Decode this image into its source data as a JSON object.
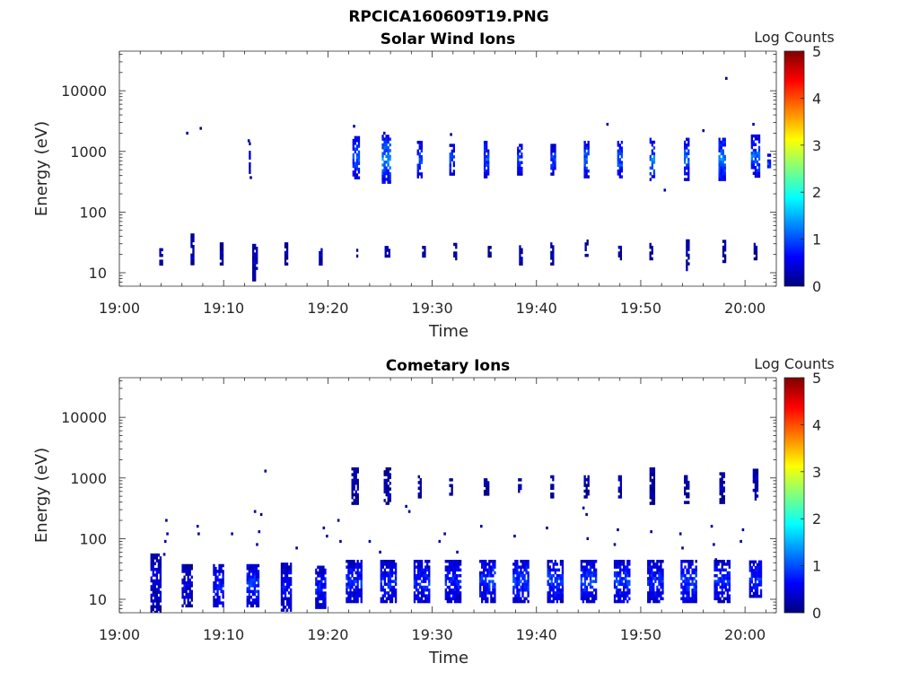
{
  "figure_title": "RPCICA160609T19.PNG",
  "colormap": [
    "#00007f",
    "#0000ff",
    "#007fff",
    "#00ffff",
    "#7fff7f",
    "#ffff00",
    "#ff7f00",
    "#ff0000",
    "#7f0000"
  ],
  "chart_data": [
    {
      "type": "heatmap",
      "title": "Solar Wind Ions",
      "xlabel": "Time",
      "ylabel": "Energy (eV)",
      "yscale": "log",
      "xlim_minutes": [
        0,
        63
      ],
      "ylim": [
        6,
        45000
      ],
      "x_tick_labels": [
        "19:00",
        "19:10",
        "19:20",
        "19:30",
        "19:40",
        "19:50",
        "20:00"
      ],
      "y_tick_labels": [
        "10",
        "100",
        "1000",
        "10000"
      ],
      "colorbar": {
        "label": "Log Counts",
        "range": [
          0,
          5
        ],
        "tick_labels": [
          "0",
          "1",
          "2",
          "3",
          "4",
          "5"
        ]
      },
      "clusters": [
        {
          "t": 4.0,
          "e": 18,
          "w": 0.3,
          "span": 0.3,
          "level": 0.2
        },
        {
          "t": 7.0,
          "e": 25,
          "w": 0.3,
          "span": 0.5,
          "level": 0.2
        },
        {
          "t": 9.8,
          "e": 20,
          "w": 0.3,
          "span": 0.4,
          "level": 0.2
        },
        {
          "t": 13.0,
          "e": 15,
          "w": 0.5,
          "span": 0.6,
          "level": 0.3
        },
        {
          "t": 16.0,
          "e": 20,
          "w": 0.4,
          "span": 0.4,
          "level": 0.2
        },
        {
          "t": 19.3,
          "e": 18,
          "w": 0.4,
          "span": 0.3,
          "level": 0.2
        },
        {
          "t": 22.8,
          "e": 22,
          "w": 0.2,
          "span": 0.2,
          "level": 0.2
        },
        {
          "t": 25.7,
          "e": 22,
          "w": 0.5,
          "span": 0.2,
          "level": 0.2
        },
        {
          "t": 29.2,
          "e": 22,
          "w": 0.4,
          "span": 0.2,
          "level": 0.2
        },
        {
          "t": 32.2,
          "e": 22,
          "w": 0.4,
          "span": 0.3,
          "level": 0.2
        },
        {
          "t": 35.5,
          "e": 22,
          "w": 0.4,
          "span": 0.2,
          "level": 0.2
        },
        {
          "t": 38.5,
          "e": 20,
          "w": 0.4,
          "span": 0.4,
          "level": 0.2
        },
        {
          "t": 41.5,
          "e": 20,
          "w": 0.3,
          "span": 0.4,
          "level": 0.2
        },
        {
          "t": 44.8,
          "e": 25,
          "w": 0.4,
          "span": 0.3,
          "level": 0.2
        },
        {
          "t": 48.0,
          "e": 22,
          "w": 0.3,
          "span": 0.3,
          "level": 0.2
        },
        {
          "t": 51.0,
          "e": 22,
          "w": 0.3,
          "span": 0.3,
          "level": 0.2
        },
        {
          "t": 54.5,
          "e": 20,
          "w": 0.4,
          "span": 0.5,
          "level": 0.2
        },
        {
          "t": 58.0,
          "e": 22,
          "w": 0.4,
          "span": 0.4,
          "level": 0.2
        },
        {
          "t": 61.0,
          "e": 22,
          "w": 0.4,
          "span": 0.3,
          "level": 0.2
        },
        {
          "t": 12.5,
          "e": 800,
          "w": 0.2,
          "span": 0.5,
          "level": 0.3
        },
        {
          "t": 22.7,
          "e": 800,
          "w": 0.7,
          "span": 0.7,
          "level": 1.0
        },
        {
          "t": 25.6,
          "e": 750,
          "w": 0.8,
          "span": 0.8,
          "level": 1.3
        },
        {
          "t": 28.8,
          "e": 750,
          "w": 0.5,
          "span": 0.6,
          "level": 1.0
        },
        {
          "t": 31.9,
          "e": 750,
          "w": 0.5,
          "span": 0.5,
          "level": 1.0
        },
        {
          "t": 35.2,
          "e": 750,
          "w": 0.6,
          "span": 0.6,
          "level": 1.0
        },
        {
          "t": 38.4,
          "e": 750,
          "w": 0.5,
          "span": 0.5,
          "level": 0.9
        },
        {
          "t": 41.6,
          "e": 750,
          "w": 0.5,
          "span": 0.5,
          "level": 0.9
        },
        {
          "t": 44.8,
          "e": 750,
          "w": 0.6,
          "span": 0.6,
          "level": 1.1
        },
        {
          "t": 48.0,
          "e": 750,
          "w": 0.6,
          "span": 0.6,
          "level": 1.1
        },
        {
          "t": 51.1,
          "e": 750,
          "w": 0.6,
          "span": 0.7,
          "level": 1.2
        },
        {
          "t": 54.4,
          "e": 750,
          "w": 0.6,
          "span": 0.7,
          "level": 1.1
        },
        {
          "t": 57.8,
          "e": 750,
          "w": 0.7,
          "span": 0.7,
          "level": 1.2
        },
        {
          "t": 61.0,
          "e": 850,
          "w": 0.8,
          "span": 0.7,
          "level": 1.1
        },
        {
          "t": 62.3,
          "e": 650,
          "w": 0.4,
          "span": 0.3,
          "level": 1.0
        }
      ],
      "points": [
        {
          "t": 6.5,
          "e": 2000
        },
        {
          "t": 7.8,
          "e": 2400
        },
        {
          "t": 12.4,
          "e": 1500
        },
        {
          "t": 12.6,
          "e": 370
        },
        {
          "t": 22.5,
          "e": 2600
        },
        {
          "t": 46.8,
          "e": 2800
        },
        {
          "t": 52.3,
          "e": 230
        },
        {
          "t": 56.0,
          "e": 2200
        },
        {
          "t": 58.2,
          "e": 16000
        },
        {
          "t": 60.8,
          "e": 2800
        },
        {
          "t": 25.4,
          "e": 2000
        },
        {
          "t": 31.8,
          "e": 1900
        }
      ]
    },
    {
      "type": "heatmap",
      "title": "Cometary Ions",
      "xlabel": "Time",
      "ylabel": "Energy (eV)",
      "yscale": "log",
      "xlim_minutes": [
        0,
        63
      ],
      "ylim": [
        6,
        45000
      ],
      "x_tick_labels": [
        "19:00",
        "19:10",
        "19:20",
        "19:30",
        "19:40",
        "19:50",
        "20:00"
      ],
      "y_tick_labels": [
        "10",
        "100",
        "1000",
        "10000"
      ],
      "colorbar": {
        "label": "Log Counts",
        "range": [
          0,
          5
        ],
        "tick_labels": [
          "0",
          "1",
          "2",
          "3",
          "4",
          "5"
        ]
      },
      "clusters": [
        {
          "t": 3.5,
          "e": 18,
          "w": 1.0,
          "span": 1.0,
          "level": 0.4
        },
        {
          "t": 6.5,
          "e": 17,
          "w": 1.0,
          "span": 0.7,
          "level": 0.5
        },
        {
          "t": 9.5,
          "e": 17,
          "w": 1.1,
          "span": 0.7,
          "level": 0.7
        },
        {
          "t": 12.8,
          "e": 17,
          "w": 1.2,
          "span": 0.7,
          "level": 0.9
        },
        {
          "t": 16.0,
          "e": 16,
          "w": 1.0,
          "span": 0.8,
          "level": 0.6
        },
        {
          "t": 19.3,
          "e": 16,
          "w": 1.0,
          "span": 0.7,
          "level": 0.7
        },
        {
          "t": 22.5,
          "e": 20,
          "w": 1.5,
          "span": 0.7,
          "level": 0.8
        },
        {
          "t": 25.8,
          "e": 20,
          "w": 1.5,
          "span": 0.7,
          "level": 0.8
        },
        {
          "t": 29.0,
          "e": 20,
          "w": 1.5,
          "span": 0.7,
          "level": 0.8
        },
        {
          "t": 32.0,
          "e": 20,
          "w": 1.5,
          "span": 0.7,
          "level": 0.8
        },
        {
          "t": 35.3,
          "e": 20,
          "w": 1.5,
          "span": 0.7,
          "level": 0.9
        },
        {
          "t": 38.5,
          "e": 20,
          "w": 1.5,
          "span": 0.7,
          "level": 0.9
        },
        {
          "t": 41.8,
          "e": 20,
          "w": 1.5,
          "span": 0.7,
          "level": 0.9
        },
        {
          "t": 45.0,
          "e": 20,
          "w": 1.5,
          "span": 0.7,
          "level": 0.9
        },
        {
          "t": 48.2,
          "e": 20,
          "w": 1.5,
          "span": 0.7,
          "level": 0.9
        },
        {
          "t": 51.4,
          "e": 20,
          "w": 1.5,
          "span": 0.7,
          "level": 0.8
        },
        {
          "t": 54.6,
          "e": 20,
          "w": 1.5,
          "span": 0.7,
          "level": 0.9
        },
        {
          "t": 57.8,
          "e": 20,
          "w": 1.5,
          "span": 0.7,
          "level": 0.8
        },
        {
          "t": 61.0,
          "e": 22,
          "w": 1.2,
          "span": 0.6,
          "level": 0.8
        },
        {
          "t": 22.6,
          "e": 750,
          "w": 0.7,
          "span": 0.6,
          "level": 0.2
        },
        {
          "t": 25.7,
          "e": 750,
          "w": 0.7,
          "span": 0.6,
          "level": 0.2
        },
        {
          "t": 28.8,
          "e": 700,
          "w": 0.4,
          "span": 0.4,
          "level": 0.2
        },
        {
          "t": 31.8,
          "e": 700,
          "w": 0.3,
          "span": 0.3,
          "level": 0.2
        },
        {
          "t": 35.2,
          "e": 700,
          "w": 0.5,
          "span": 0.3,
          "level": 0.2
        },
        {
          "t": 38.4,
          "e": 700,
          "w": 0.4,
          "span": 0.3,
          "level": 0.2
        },
        {
          "t": 41.5,
          "e": 700,
          "w": 0.4,
          "span": 0.4,
          "level": 0.2
        },
        {
          "t": 44.8,
          "e": 700,
          "w": 0.5,
          "span": 0.4,
          "level": 0.2
        },
        {
          "t": 48.0,
          "e": 700,
          "w": 0.4,
          "span": 0.4,
          "level": 0.2
        },
        {
          "t": 51.1,
          "e": 750,
          "w": 0.5,
          "span": 0.6,
          "level": 0.2
        },
        {
          "t": 54.4,
          "e": 700,
          "w": 0.5,
          "span": 0.5,
          "level": 0.2
        },
        {
          "t": 57.8,
          "e": 700,
          "w": 0.6,
          "span": 0.5,
          "level": 0.2
        },
        {
          "t": 61.0,
          "e": 800,
          "w": 0.6,
          "span": 0.5,
          "level": 0.2
        }
      ],
      "points": [
        {
          "t": 4.5,
          "e": 200
        },
        {
          "t": 4.6,
          "e": 120
        },
        {
          "t": 4.4,
          "e": 90
        },
        {
          "t": 4.3,
          "e": 55
        },
        {
          "t": 7.5,
          "e": 160
        },
        {
          "t": 7.6,
          "e": 120
        },
        {
          "t": 10.8,
          "e": 120
        },
        {
          "t": 13.0,
          "e": 280
        },
        {
          "t": 13.6,
          "e": 250
        },
        {
          "t": 13.4,
          "e": 130
        },
        {
          "t": 13.2,
          "e": 80
        },
        {
          "t": 14.0,
          "e": 1300
        },
        {
          "t": 17.0,
          "e": 70
        },
        {
          "t": 19.6,
          "e": 150
        },
        {
          "t": 19.9,
          "e": 110
        },
        {
          "t": 21.0,
          "e": 200
        },
        {
          "t": 21.2,
          "e": 90
        },
        {
          "t": 24.0,
          "e": 90
        },
        {
          "t": 27.5,
          "e": 340
        },
        {
          "t": 27.8,
          "e": 280
        },
        {
          "t": 25.0,
          "e": 60
        },
        {
          "t": 30.7,
          "e": 90
        },
        {
          "t": 31.2,
          "e": 120
        },
        {
          "t": 32.4,
          "e": 60
        },
        {
          "t": 34.7,
          "e": 160
        },
        {
          "t": 37.9,
          "e": 110
        },
        {
          "t": 41.0,
          "e": 150
        },
        {
          "t": 44.5,
          "e": 320
        },
        {
          "t": 44.8,
          "e": 250
        },
        {
          "t": 44.9,
          "e": 100
        },
        {
          "t": 47.5,
          "e": 80
        },
        {
          "t": 47.8,
          "e": 140
        },
        {
          "t": 51.0,
          "e": 130
        },
        {
          "t": 53.8,
          "e": 120
        },
        {
          "t": 54.0,
          "e": 70
        },
        {
          "t": 56.8,
          "e": 160
        },
        {
          "t": 57.0,
          "e": 80
        },
        {
          "t": 57.2,
          "e": 45
        },
        {
          "t": 59.8,
          "e": 140
        },
        {
          "t": 59.6,
          "e": 90
        }
      ]
    }
  ]
}
